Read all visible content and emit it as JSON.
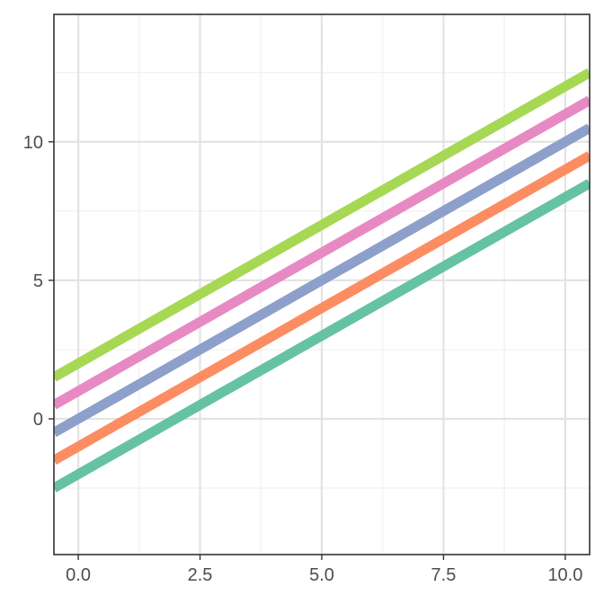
{
  "chart_data": {
    "type": "line",
    "title": "",
    "xlabel": "",
    "ylabel": "",
    "xlim": [
      -0.5,
      10.5
    ],
    "ylim": [
      -4.9,
      14.6
    ],
    "x_ticks": [
      0,
      2.5,
      5,
      7.5,
      10
    ],
    "x_tick_labels": [
      "0.0",
      "2.5",
      "5.0",
      "7.5",
      "10.0"
    ],
    "y_ticks": [
      0,
      5,
      10
    ],
    "y_tick_labels": [
      "0",
      "5",
      "10"
    ],
    "x_minor_ticks": [
      1.25,
      3.75,
      6.25,
      8.75
    ],
    "y_minor_ticks": [
      -2.5,
      2.5,
      7.5,
      12.5
    ],
    "grid": true,
    "legend": "none",
    "series": [
      {
        "color": "#66c2a5",
        "x": [
          -0.5,
          10.5
        ],
        "y": [
          -2.5,
          8.5
        ]
      },
      {
        "color": "#fc8d62",
        "x": [
          -0.5,
          10.5
        ],
        "y": [
          -1.5,
          9.5
        ]
      },
      {
        "color": "#8da0cb",
        "x": [
          -0.5,
          10.5
        ],
        "y": [
          -0.5,
          10.5
        ]
      },
      {
        "color": "#e78ac3",
        "x": [
          -0.5,
          10.5
        ],
        "y": [
          0.5,
          11.5
        ]
      },
      {
        "color": "#a6d854",
        "x": [
          -0.5,
          10.5
        ],
        "y": [
          1.5,
          12.5
        ]
      }
    ]
  }
}
